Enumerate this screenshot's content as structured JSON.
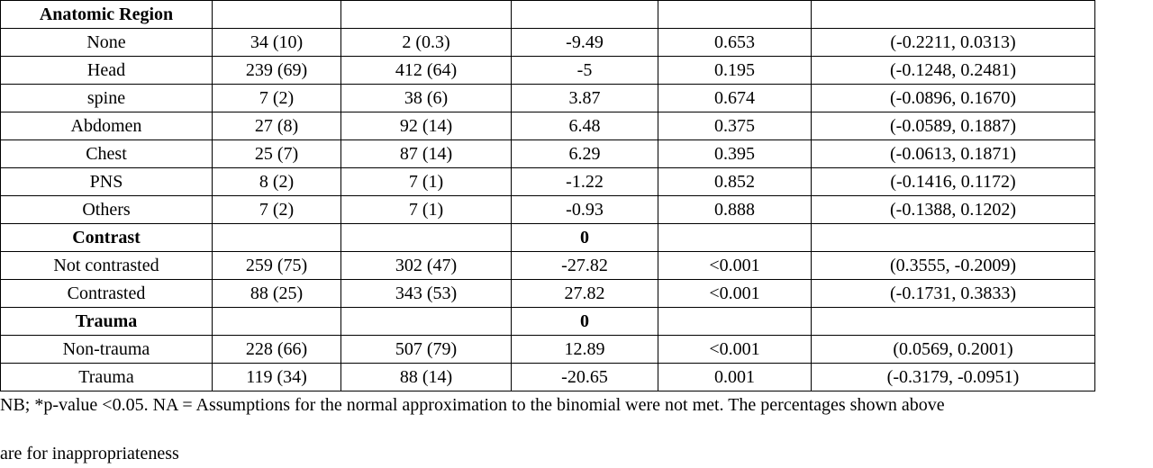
{
  "table": {
    "sections": [
      {
        "heading": [
          "Anatomic Region",
          null,
          null,
          null,
          null,
          null
        ],
        "rows": [
          [
            "None",
            "34 (10)",
            "2 (0.3)",
            "-9.49",
            "0.653",
            "(-0.2211, 0.0313)"
          ],
          [
            "Head",
            "239 (69)",
            "412 (64)",
            "-5",
            "0.195",
            "(-0.1248, 0.2481)"
          ],
          [
            "spine",
            "7 (2)",
            "38 (6)",
            "3.87",
            "0.674",
            "(-0.0896, 0.1670)"
          ],
          [
            "Abdomen",
            "27 (8)",
            "92 (14)",
            "6.48",
            "0.375",
            "(-0.0589, 0.1887)"
          ],
          [
            "Chest",
            "25 (7)",
            "87 (14)",
            "6.29",
            "0.395",
            "(-0.0613, 0.1871)"
          ],
          [
            "PNS",
            "8 (2)",
            "7 (1)",
            "-1.22",
            "0.852",
            "(-0.1416, 0.1172)"
          ],
          [
            "Others",
            "7 (2)",
            "7 (1)",
            "-0.93",
            "0.888",
            "(-0.1388, 0.1202)"
          ]
        ]
      },
      {
        "heading": [
          "Contrast",
          null,
          null,
          "0",
          null,
          null
        ],
        "rows": [
          [
            "Not contrasted",
            "259 (75)",
            "302 (47)",
            "-27.82",
            "<0.001",
            "(0.3555, -0.2009)"
          ],
          [
            "Contrasted",
            "88 (25)",
            "343 (53)",
            "27.82",
            "<0.001",
            "(-0.1731, 0.3833)"
          ]
        ]
      },
      {
        "heading": [
          "Trauma",
          null,
          null,
          "0",
          null,
          null
        ],
        "rows": [
          [
            "Non-trauma",
            "228 (66)",
            "507 (79)",
            "12.89",
            "<0.001",
            "(0.0569, 0.2001)"
          ],
          [
            "Trauma",
            "119 (34)",
            "88 (14)",
            "-20.65",
            "0.001",
            "(-0.3179, -0.0951)"
          ]
        ]
      }
    ]
  },
  "note": [
    "NB;   *p-value <0.05.  NA = Assumptions for the normal approximation to the binomial were not met. The percentages shown above",
    "are for inappropriateness"
  ]
}
